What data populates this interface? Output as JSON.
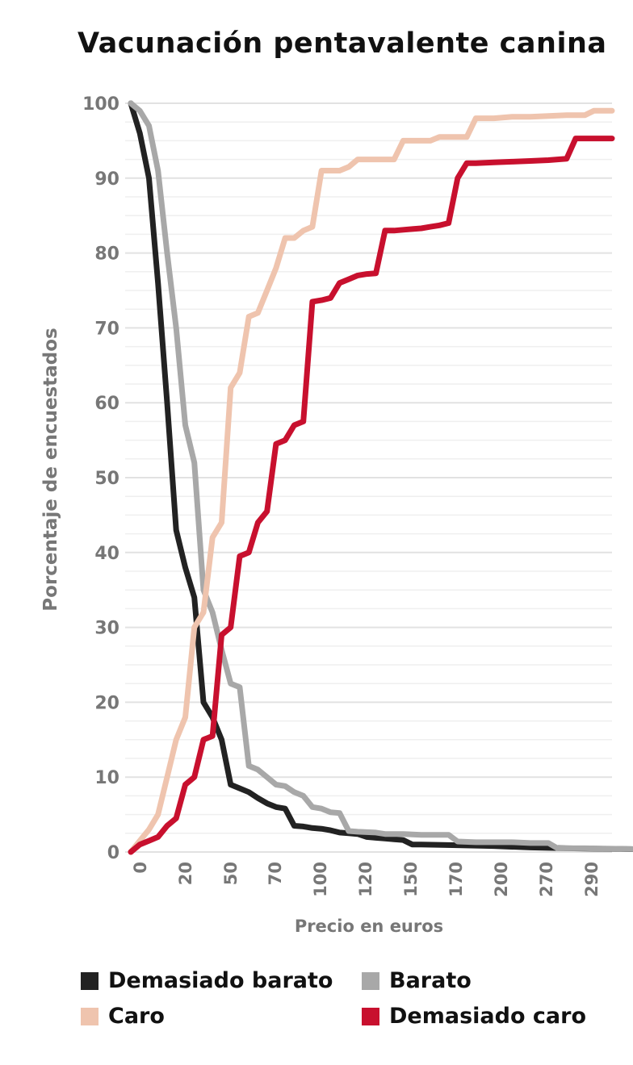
{
  "title": "Vacunación pentavalente canina",
  "chart_data": {
    "type": "line",
    "title": "Vacunación pentavalente canina",
    "xlabel": "Precio en euros",
    "ylabel": "Porcentaje de encuestados",
    "ylim": [
      0,
      100
    ],
    "yticks": [
      "0",
      "10",
      "20",
      "30",
      "40",
      "50",
      "60",
      "70",
      "80",
      "90",
      "100"
    ],
    "xticks": [
      "0",
      "20",
      "50",
      "70",
      "100",
      "120",
      "150",
      "170",
      "200",
      "270",
      "290"
    ],
    "legend_position": "bottom",
    "grid": true,
    "series": [
      {
        "name": "Demasiado barato",
        "color": "#222222",
        "values": [
          [
            0,
            100
          ],
          [
            1,
            96
          ],
          [
            2,
            90
          ],
          [
            3,
            76
          ],
          [
            4,
            60
          ],
          [
            5,
            43
          ],
          [
            6,
            38
          ],
          [
            7,
            34
          ],
          [
            8,
            20
          ],
          [
            9,
            18
          ],
          [
            10,
            15
          ],
          [
            11,
            9
          ],
          [
            12,
            8.5
          ],
          [
            13,
            8
          ],
          [
            14,
            7.2
          ],
          [
            15,
            6.5
          ],
          [
            16,
            6
          ],
          [
            17,
            5.8
          ],
          [
            18,
            3.5
          ],
          [
            19,
            3.4
          ],
          [
            20,
            3.2
          ],
          [
            21,
            3.1
          ],
          [
            22,
            2.9
          ],
          [
            23,
            2.6
          ],
          [
            24,
            2.5
          ],
          [
            25,
            2.4
          ],
          [
            26,
            2
          ],
          [
            27,
            1.9
          ],
          [
            28,
            1.8
          ],
          [
            29,
            1.7
          ],
          [
            30,
            1.6
          ],
          [
            31,
            1
          ],
          [
            32,
            1
          ],
          [
            36,
            0.9
          ],
          [
            40,
            0.8
          ],
          [
            44,
            0.6
          ],
          [
            48,
            0.5
          ],
          [
            54,
            0.4
          ],
          [
            60,
            0.3
          ],
          [
            66,
            0.2
          ],
          [
            73,
            0.1
          ]
        ]
      },
      {
        "name": "Barato",
        "color": "#a8a8a8",
        "values": [
          [
            0,
            100
          ],
          [
            1,
            99
          ],
          [
            2,
            97
          ],
          [
            3,
            91
          ],
          [
            4,
            80
          ],
          [
            5,
            70
          ],
          [
            6,
            57
          ],
          [
            7,
            52
          ],
          [
            8,
            35
          ],
          [
            9,
            32
          ],
          [
            10,
            27
          ],
          [
            11,
            22.5
          ],
          [
            12,
            22
          ],
          [
            13,
            11.5
          ],
          [
            14,
            11
          ],
          [
            15,
            10
          ],
          [
            16,
            9
          ],
          [
            17,
            8.8
          ],
          [
            18,
            8
          ],
          [
            19,
            7.5
          ],
          [
            20,
            6
          ],
          [
            21,
            5.8
          ],
          [
            22,
            5.3
          ],
          [
            23,
            5.2
          ],
          [
            24,
            2.8
          ],
          [
            25,
            2.7
          ],
          [
            27,
            2.6
          ],
          [
            28,
            2.4
          ],
          [
            30,
            2.4
          ],
          [
            32,
            2.3
          ],
          [
            35,
            2.3
          ],
          [
            36,
            1.4
          ],
          [
            38,
            1.3
          ],
          [
            42,
            1.3
          ],
          [
            44,
            1.2
          ],
          [
            46,
            1.2
          ],
          [
            47,
            0.5
          ],
          [
            50,
            0.5
          ],
          [
            55,
            0.4
          ],
          [
            60,
            0.3
          ],
          [
            73,
            0.3
          ]
        ]
      },
      {
        "name": "Caro",
        "color": "#efc4ae",
        "values": [
          [
            0,
            0
          ],
          [
            1,
            1.5
          ],
          [
            2,
            3
          ],
          [
            3,
            5
          ],
          [
            4,
            10
          ],
          [
            5,
            15
          ],
          [
            6,
            18
          ],
          [
            7,
            30
          ],
          [
            8,
            32
          ],
          [
            9,
            42
          ],
          [
            10,
            44
          ],
          [
            11,
            62
          ],
          [
            12,
            64
          ],
          [
            13,
            71.5
          ],
          [
            14,
            72
          ],
          [
            15,
            75
          ],
          [
            16,
            78
          ],
          [
            17,
            82
          ],
          [
            18,
            82
          ],
          [
            19,
            83
          ],
          [
            20,
            83.5
          ],
          [
            21,
            91
          ],
          [
            22,
            91
          ],
          [
            23,
            91
          ],
          [
            24,
            91.5
          ],
          [
            25,
            92.5
          ],
          [
            26,
            92.5
          ],
          [
            27,
            92.5
          ],
          [
            28,
            92.5
          ],
          [
            29,
            92.5
          ],
          [
            30,
            95
          ],
          [
            31,
            95
          ],
          [
            32,
            95
          ],
          [
            33,
            95
          ],
          [
            34,
            95.5
          ],
          [
            35,
            95.5
          ],
          [
            36,
            95.5
          ],
          [
            37,
            95.5
          ],
          [
            38,
            98
          ],
          [
            40,
            98
          ],
          [
            42,
            98.2
          ],
          [
            44,
            98.2
          ],
          [
            46,
            98.3
          ],
          [
            48,
            98.4
          ],
          [
            50,
            98.4
          ],
          [
            51,
            99
          ],
          [
            53,
            99
          ]
        ]
      },
      {
        "name": "Demasiado caro",
        "color": "#c8102e",
        "values": [
          [
            0,
            0
          ],
          [
            1,
            1
          ],
          [
            2,
            1.5
          ],
          [
            3,
            2
          ],
          [
            4,
            3.5
          ],
          [
            5,
            4.5
          ],
          [
            6,
            9
          ],
          [
            7,
            10
          ],
          [
            8,
            15
          ],
          [
            9,
            15.5
          ],
          [
            10,
            29
          ],
          [
            11,
            30
          ],
          [
            12,
            39.5
          ],
          [
            13,
            40
          ],
          [
            14,
            44
          ],
          [
            15,
            45.5
          ],
          [
            16,
            54.5
          ],
          [
            17,
            55
          ],
          [
            18,
            57
          ],
          [
            19,
            57.5
          ],
          [
            20,
            73.5
          ],
          [
            21,
            73.7
          ],
          [
            22,
            74
          ],
          [
            23,
            76
          ],
          [
            24,
            76.5
          ],
          [
            25,
            77
          ],
          [
            26,
            77.2
          ],
          [
            27,
            77.3
          ],
          [
            28,
            83
          ],
          [
            29,
            83
          ],
          [
            30,
            83.1
          ],
          [
            31,
            83.2
          ],
          [
            32,
            83.3
          ],
          [
            33,
            83.5
          ],
          [
            34,
            83.7
          ],
          [
            35,
            84
          ],
          [
            36,
            90
          ],
          [
            37,
            92
          ],
          [
            38,
            92
          ],
          [
            40,
            92.1
          ],
          [
            42,
            92.2
          ],
          [
            44,
            92.3
          ],
          [
            46,
            92.4
          ],
          [
            48,
            92.6
          ],
          [
            49,
            95.3
          ],
          [
            53,
            95.3
          ]
        ]
      }
    ]
  }
}
